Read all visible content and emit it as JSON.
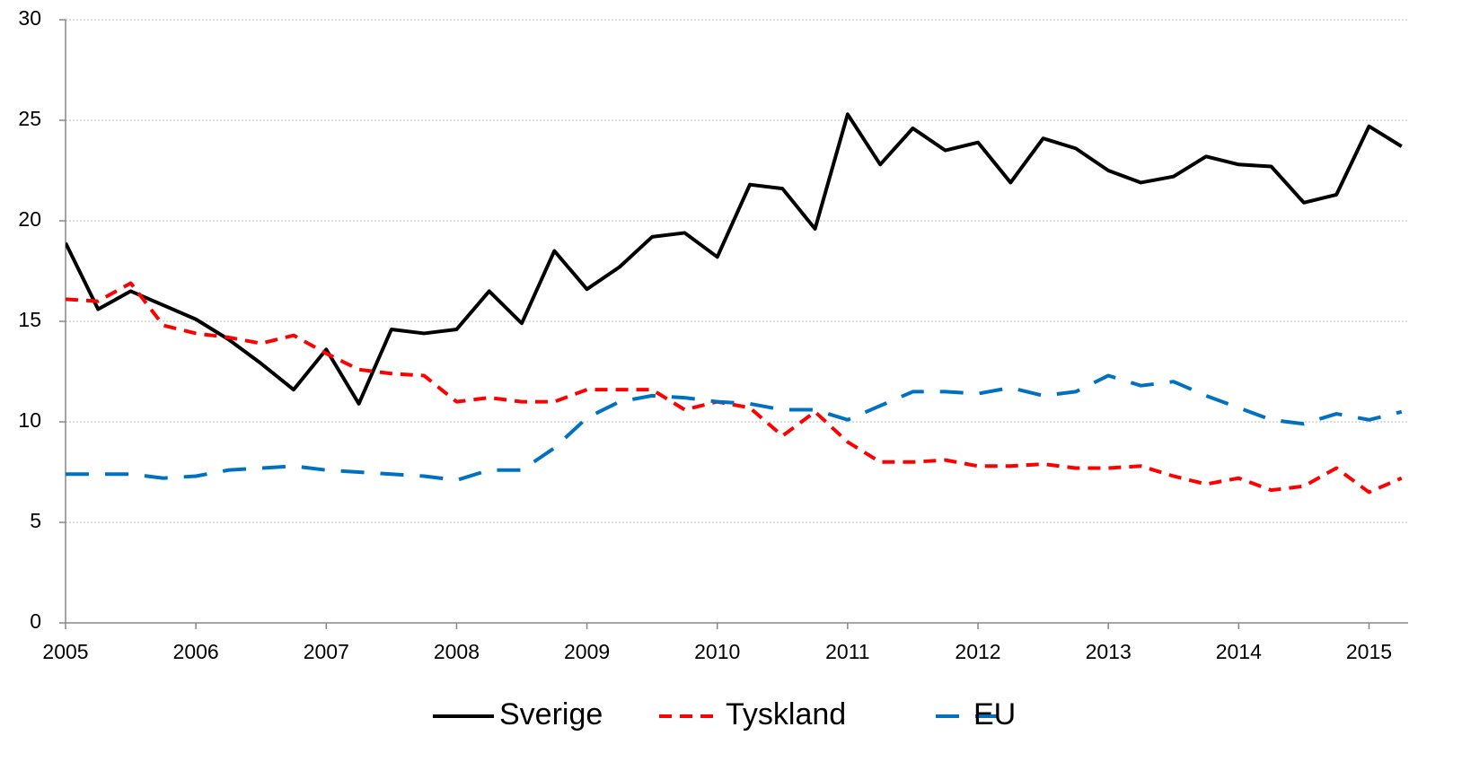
{
  "chart_data": {
    "type": "line",
    "x": [
      2005,
      2005.25,
      2005.5,
      2005.75,
      2006,
      2006.25,
      2006.5,
      2006.75,
      2007,
      2007.25,
      2007.5,
      2007.75,
      2008,
      2008.25,
      2008.5,
      2008.75,
      2009,
      2009.25,
      2009.5,
      2009.75,
      2010,
      2010.25,
      2010.5,
      2010.75,
      2011,
      2011.25,
      2011.5,
      2011.75,
      2012,
      2012.25,
      2012.5,
      2012.75,
      2013,
      2013.25,
      2013.5,
      2013.75,
      2014,
      2014.25,
      2014.5,
      2014.75,
      2015,
      2015.25
    ],
    "series": [
      {
        "name": "Sverige",
        "color": "#000000",
        "dash": "solid",
        "values": [
          18.9,
          15.6,
          16.5,
          15.8,
          15.1,
          14.1,
          12.9,
          11.6,
          13.6,
          10.9,
          14.6,
          14.4,
          14.6,
          16.5,
          14.9,
          18.5,
          16.6,
          17.7,
          19.2,
          19.4,
          18.2,
          21.8,
          21.6,
          19.6,
          25.3,
          22.8,
          24.6,
          23.5,
          23.9,
          21.9,
          24.1,
          23.6,
          22.5,
          21.9,
          22.2,
          23.2,
          22.8,
          22.7,
          20.9,
          21.3,
          24.7,
          23.7
        ]
      },
      {
        "name": "Tyskland",
        "color": "#ff0000",
        "dash": "short",
        "values": [
          16.1,
          16.0,
          16.9,
          14.8,
          14.4,
          14.2,
          13.9,
          14.3,
          13.4,
          12.6,
          12.4,
          12.3,
          11.0,
          11.2,
          11.0,
          11.0,
          11.6,
          11.6,
          11.6,
          10.6,
          11.0,
          10.7,
          9.3,
          10.5,
          9.0,
          8.0,
          8.0,
          8.1,
          7.8,
          7.8,
          7.9,
          7.7,
          7.7,
          7.8,
          7.3,
          6.9,
          7.2,
          6.6,
          6.8,
          7.7,
          6.5,
          7.2
        ]
      },
      {
        "name": "EU",
        "color": "#0070c0",
        "dash": "long",
        "values": [
          7.4,
          7.4,
          7.4,
          7.2,
          7.3,
          7.6,
          7.7,
          7.8,
          7.6,
          7.5,
          7.4,
          7.3,
          7.1,
          7.6,
          7.6,
          8.7,
          10.2,
          11.0,
          11.3,
          11.2,
          11.0,
          10.9,
          10.6,
          10.6,
          10.1,
          10.8,
          11.5,
          11.5,
          11.4,
          11.7,
          11.3,
          11.5,
          12.3,
          11.8,
          12.0,
          11.3,
          10.7,
          10.1,
          9.9,
          10.4,
          10.1,
          10.5
        ]
      }
    ],
    "xlim": [
      2005,
      2015.3
    ],
    "xticks": [
      2005,
      2006,
      2007,
      2008,
      2009,
      2010,
      2011,
      2012,
      2013,
      2014,
      2015
    ],
    "ylim": [
      0,
      30
    ],
    "yticks": [
      0,
      5,
      10,
      15,
      20,
      25,
      30
    ],
    "grid": true,
    "legend": "bottom"
  }
}
